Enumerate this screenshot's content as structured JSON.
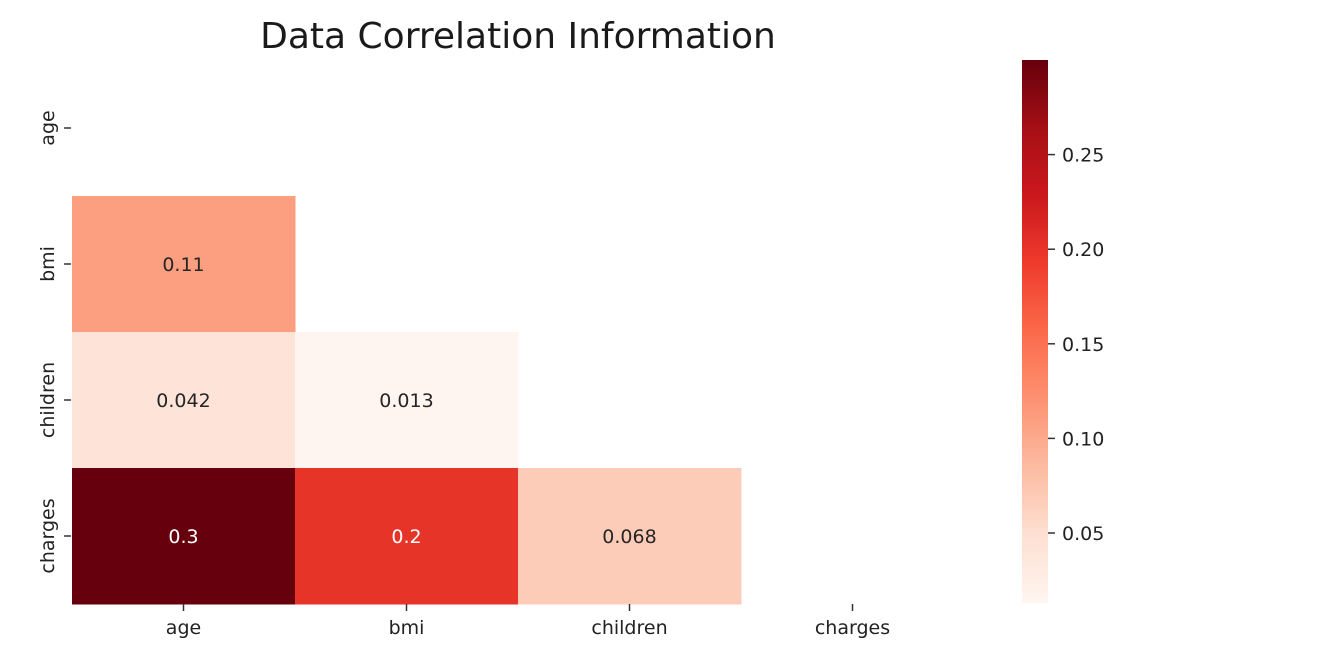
{
  "chart_data": {
    "type": "heatmap",
    "title": "Data Correlation Information",
    "xlabel": "",
    "ylabel": "",
    "x_categories": [
      "age",
      "bmi",
      "children",
      "charges"
    ],
    "y_categories": [
      "age",
      "bmi",
      "children",
      "charges"
    ],
    "cells": [
      {
        "row": "bmi",
        "col": "age",
        "value": 0.11,
        "label": "0.11"
      },
      {
        "row": "children",
        "col": "age",
        "value": 0.042,
        "label": "0.042"
      },
      {
        "row": "children",
        "col": "bmi",
        "value": 0.013,
        "label": "0.013"
      },
      {
        "row": "charges",
        "col": "age",
        "value": 0.3,
        "label": "0.3"
      },
      {
        "row": "charges",
        "col": "bmi",
        "value": 0.2,
        "label": "0.2"
      },
      {
        "row": "charges",
        "col": "children",
        "value": 0.068,
        "label": "0.068"
      }
    ],
    "mask": "upper triangle including diagonal",
    "colormap": "Reds",
    "color_range": [
      0.013,
      0.3
    ],
    "colorbar": {
      "ticks": [
        0.05,
        0.1,
        0.15,
        0.2,
        0.25
      ],
      "tick_labels": [
        "0.05",
        "0.10",
        "0.15",
        "0.20",
        "0.25"
      ],
      "placement": "right"
    },
    "grid": false,
    "legend": "none"
  }
}
